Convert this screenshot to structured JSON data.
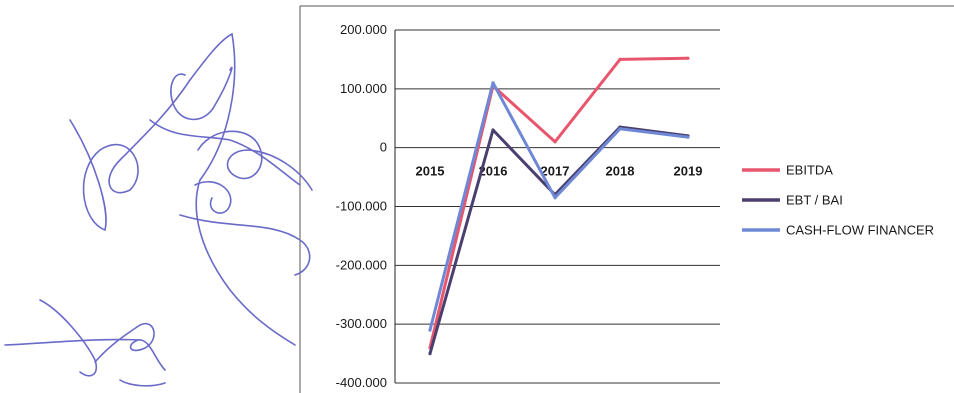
{
  "chart_data": {
    "type": "line",
    "categories": [
      "2015",
      "2016",
      "2017",
      "2018",
      "2019"
    ],
    "y_ticks": [
      "200.000",
      "100.000",
      "0",
      "-100.000",
      "-200.000",
      "-300.000",
      "-400.000"
    ],
    "ylim": [
      -400000,
      200000
    ],
    "grid": true,
    "legend_position": "right",
    "series": [
      {
        "name": "EBITDA",
        "color": "#e8566e",
        "values": [
          -340000,
          105000,
          10000,
          150000,
          152000
        ]
      },
      {
        "name": "EBT / BAI",
        "color": "#4a3f6e",
        "values": [
          -350000,
          30000,
          -80000,
          35000,
          20000
        ]
      },
      {
        "name": "CASH-FLOW FINANCER",
        "color": "#6f88d6",
        "values": [
          -310000,
          110000,
          -85000,
          32000,
          18000
        ]
      }
    ]
  },
  "signature_icon": "handwritten-signature"
}
